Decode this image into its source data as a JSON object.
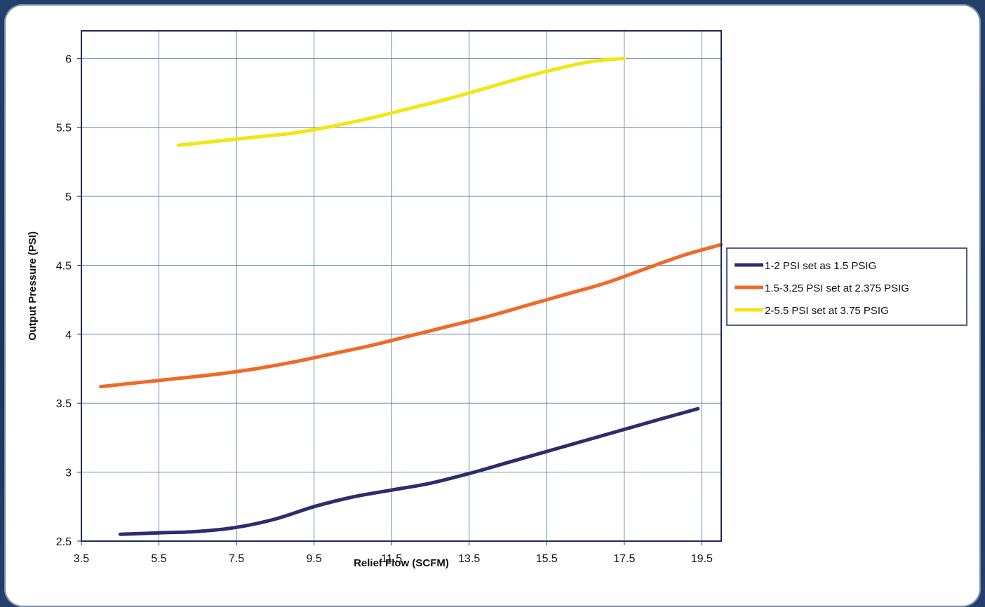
{
  "chart_data": {
    "type": "line",
    "title": "",
    "xlabel": "Relief Flow (SCFM)",
    "ylabel": "Output Pressure (PSI)",
    "xlim": [
      3.5,
      20.0
    ],
    "ylim": [
      2.5,
      6.2
    ],
    "x_ticks": [
      "3.5",
      "5.5",
      "7.5",
      "9.5",
      "11.5",
      "13.5",
      "15.5",
      "17.5",
      "19.5"
    ],
    "y_ticks": [
      "2.5",
      "3",
      "3.5",
      "4",
      "4.5",
      "5",
      "5.5",
      "6"
    ],
    "grid": true,
    "legend_position": "right",
    "series": [
      {
        "name": "1-2 PSI set as 1.5 PSIG",
        "color": "#2e2b6e",
        "x": [
          4.5,
          5.5,
          6.5,
          7.5,
          8.5,
          9.5,
          10.5,
          11.5,
          12.5,
          13.5,
          14.5,
          15.5,
          16.5,
          17.5,
          18.5,
          19.4
        ],
        "y": [
          2.55,
          2.56,
          2.57,
          2.6,
          2.66,
          2.75,
          2.82,
          2.87,
          2.92,
          2.99,
          3.07,
          3.15,
          3.23,
          3.31,
          3.39,
          3.46
        ]
      },
      {
        "name": "1.5-3.25 PSI set at 2.375 PSIG",
        "color": "#ef6a2a",
        "x": [
          4.0,
          5.0,
          6.0,
          7.0,
          8.0,
          9.0,
          10.0,
          11.0,
          12.0,
          13.0,
          14.0,
          15.0,
          16.0,
          17.0,
          18.0,
          19.0,
          20.0
        ],
        "y": [
          3.62,
          3.65,
          3.68,
          3.71,
          3.75,
          3.8,
          3.86,
          3.92,
          3.99,
          4.06,
          4.13,
          4.21,
          4.29,
          4.37,
          4.47,
          4.57,
          4.65
        ]
      },
      {
        "name": "2-5.5 PSI set at 3.75 PSIG",
        "color": "#f2e614",
        "x": [
          6.0,
          7.0,
          8.0,
          9.0,
          10.0,
          11.0,
          12.0,
          13.0,
          14.0,
          15.0,
          16.0,
          16.7,
          17.5
        ],
        "y": [
          5.37,
          5.4,
          5.43,
          5.46,
          5.51,
          5.57,
          5.64,
          5.71,
          5.79,
          5.87,
          5.94,
          5.98,
          6.0
        ]
      }
    ]
  }
}
